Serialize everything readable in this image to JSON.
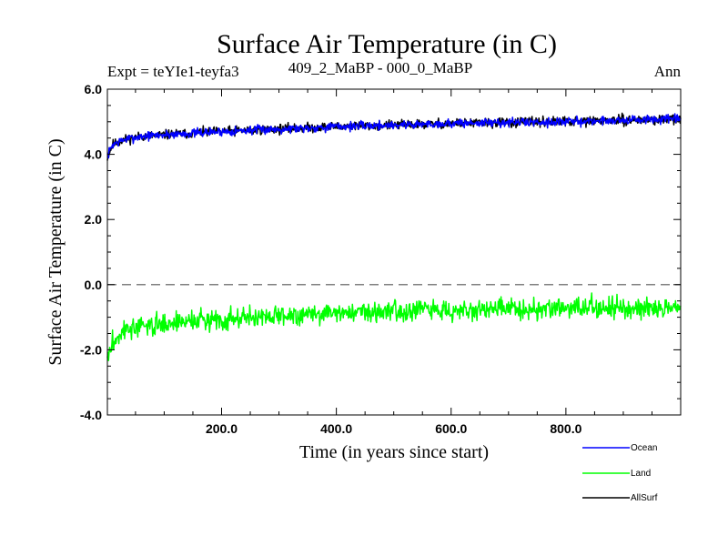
{
  "chart_data": {
    "type": "line",
    "title": "Surface Air Temperature (in C)",
    "subtitle_left": "Expt = teYIe1-teyfa3",
    "subtitle_center": "409_2_MaBP - 000_0_MaBP",
    "subtitle_right": "Ann",
    "xlabel": "Time (in years since start)",
    "ylabel": "Surface Air Temperature (in C)",
    "xlim": [
      1,
      1000
    ],
    "ylim": [
      -4.0,
      6.0
    ],
    "x_ticks": [
      200,
      400,
      600,
      800
    ],
    "x_tick_labels": [
      "200.0",
      "400.0",
      "600.0",
      "800.0"
    ],
    "y_ticks": [
      -4,
      -2,
      0,
      2,
      4,
      6
    ],
    "y_tick_labels": [
      "-4.0",
      "-2.0",
      "0.0",
      "2.0",
      "4.0",
      "6.0"
    ],
    "reference_line": 0.0,
    "series": [
      {
        "name": "AllSurf",
        "color": "#000000",
        "sample_years": [
          1,
          10,
          30,
          60,
          100,
          150,
          200,
          300,
          400,
          500,
          600,
          700,
          800,
          900,
          1000
        ],
        "sample_values": [
          3.9,
          4.3,
          4.45,
          4.55,
          4.6,
          4.65,
          4.7,
          4.78,
          4.85,
          4.9,
          4.95,
          4.98,
          5.0,
          5.05,
          5.08
        ],
        "noise": 0.13,
        "seed": 11
      },
      {
        "name": "Ocean",
        "color": "#0000ff",
        "sample_years": [
          1,
          10,
          30,
          60,
          100,
          150,
          200,
          300,
          400,
          500,
          600,
          700,
          800,
          900,
          1000
        ],
        "sample_values": [
          3.95,
          4.3,
          4.45,
          4.55,
          4.6,
          4.65,
          4.7,
          4.78,
          4.85,
          4.9,
          4.95,
          4.98,
          5.0,
          5.05,
          5.08
        ],
        "noise": 0.12,
        "seed": 7
      },
      {
        "name": "Land",
        "color": "#00ff00",
        "sample_years": [
          1,
          10,
          30,
          60,
          100,
          150,
          200,
          300,
          400,
          500,
          600,
          700,
          800,
          900,
          1000
        ],
        "sample_values": [
          -2.3,
          -1.8,
          -1.4,
          -1.3,
          -1.2,
          -1.1,
          -1.05,
          -0.95,
          -0.85,
          -0.8,
          -0.78,
          -0.75,
          -0.72,
          -0.7,
          -0.68
        ],
        "noise": 0.28,
        "seed": 3
      }
    ],
    "legend": {
      "position": "bottom-right",
      "entries": [
        {
          "name": "Ocean",
          "color": "#0000ff"
        },
        {
          "name": "Land",
          "color": "#00ff00"
        },
        {
          "name": "AllSurf",
          "color": "#000000"
        }
      ]
    }
  }
}
